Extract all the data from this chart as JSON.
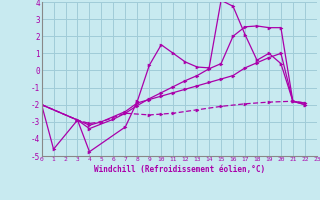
{
  "xlabel": "Windchill (Refroidissement éolien,°C)",
  "xlim": [
    0,
    23
  ],
  "ylim": [
    -5,
    4
  ],
  "yticks": [
    -5,
    -4,
    -3,
    -2,
    -1,
    0,
    1,
    2,
    3,
    4
  ],
  "xticks": [
    0,
    1,
    2,
    3,
    4,
    5,
    6,
    7,
    8,
    9,
    10,
    11,
    12,
    13,
    14,
    15,
    16,
    17,
    18,
    19,
    20,
    21,
    22,
    23
  ],
  "background_color": "#c8eaf0",
  "grid_color": "#a0ccd8",
  "line_color": "#aa00aa",
  "curve1_x": [
    0,
    1,
    3,
    4,
    7,
    8,
    9,
    10,
    11,
    12,
    13,
    14,
    15,
    16,
    17,
    18,
    19,
    20,
    21,
    22
  ],
  "curve1_y": [
    -2,
    -4.6,
    -2.9,
    -4.75,
    -3.3,
    -1.8,
    0.3,
    1.5,
    1.0,
    0.5,
    0.2,
    0.15,
    4.1,
    3.75,
    2.1,
    0.6,
    1.0,
    0.4,
    -1.8,
    -2.0
  ],
  "curve2_x": [
    0,
    3,
    4,
    5,
    7,
    9,
    10,
    11,
    13,
    15,
    17,
    19,
    21,
    22
  ],
  "curve2_y": [
    -2,
    -2.9,
    -3.1,
    -3.0,
    -2.5,
    -2.6,
    -2.55,
    -2.5,
    -2.3,
    -2.1,
    -1.95,
    -1.85,
    -1.8,
    -1.9
  ],
  "curve3_x": [
    0,
    3,
    4,
    5,
    7,
    8,
    9,
    10,
    11,
    12,
    13,
    14,
    15,
    16,
    17,
    18,
    19,
    20,
    21,
    22
  ],
  "curve3_y": [
    -2,
    -2.9,
    -3.2,
    -3.0,
    -2.4,
    -1.9,
    -1.7,
    -1.5,
    -1.3,
    -1.1,
    -0.9,
    -0.7,
    -0.5,
    -0.3,
    0.15,
    0.45,
    0.75,
    1.0,
    -1.8,
    -1.9
  ],
  "curve4_x": [
    0,
    3,
    4,
    6,
    7,
    8,
    9,
    10,
    11,
    12,
    13,
    14,
    15,
    16,
    17,
    18,
    19,
    20,
    21,
    22
  ],
  "curve4_y": [
    -2,
    -2.9,
    -3.4,
    -2.85,
    -2.5,
    -2.05,
    -1.65,
    -1.3,
    -0.95,
    -0.6,
    -0.3,
    0.1,
    0.4,
    2.0,
    2.55,
    2.6,
    2.5,
    2.5,
    -1.8,
    -2.0
  ]
}
